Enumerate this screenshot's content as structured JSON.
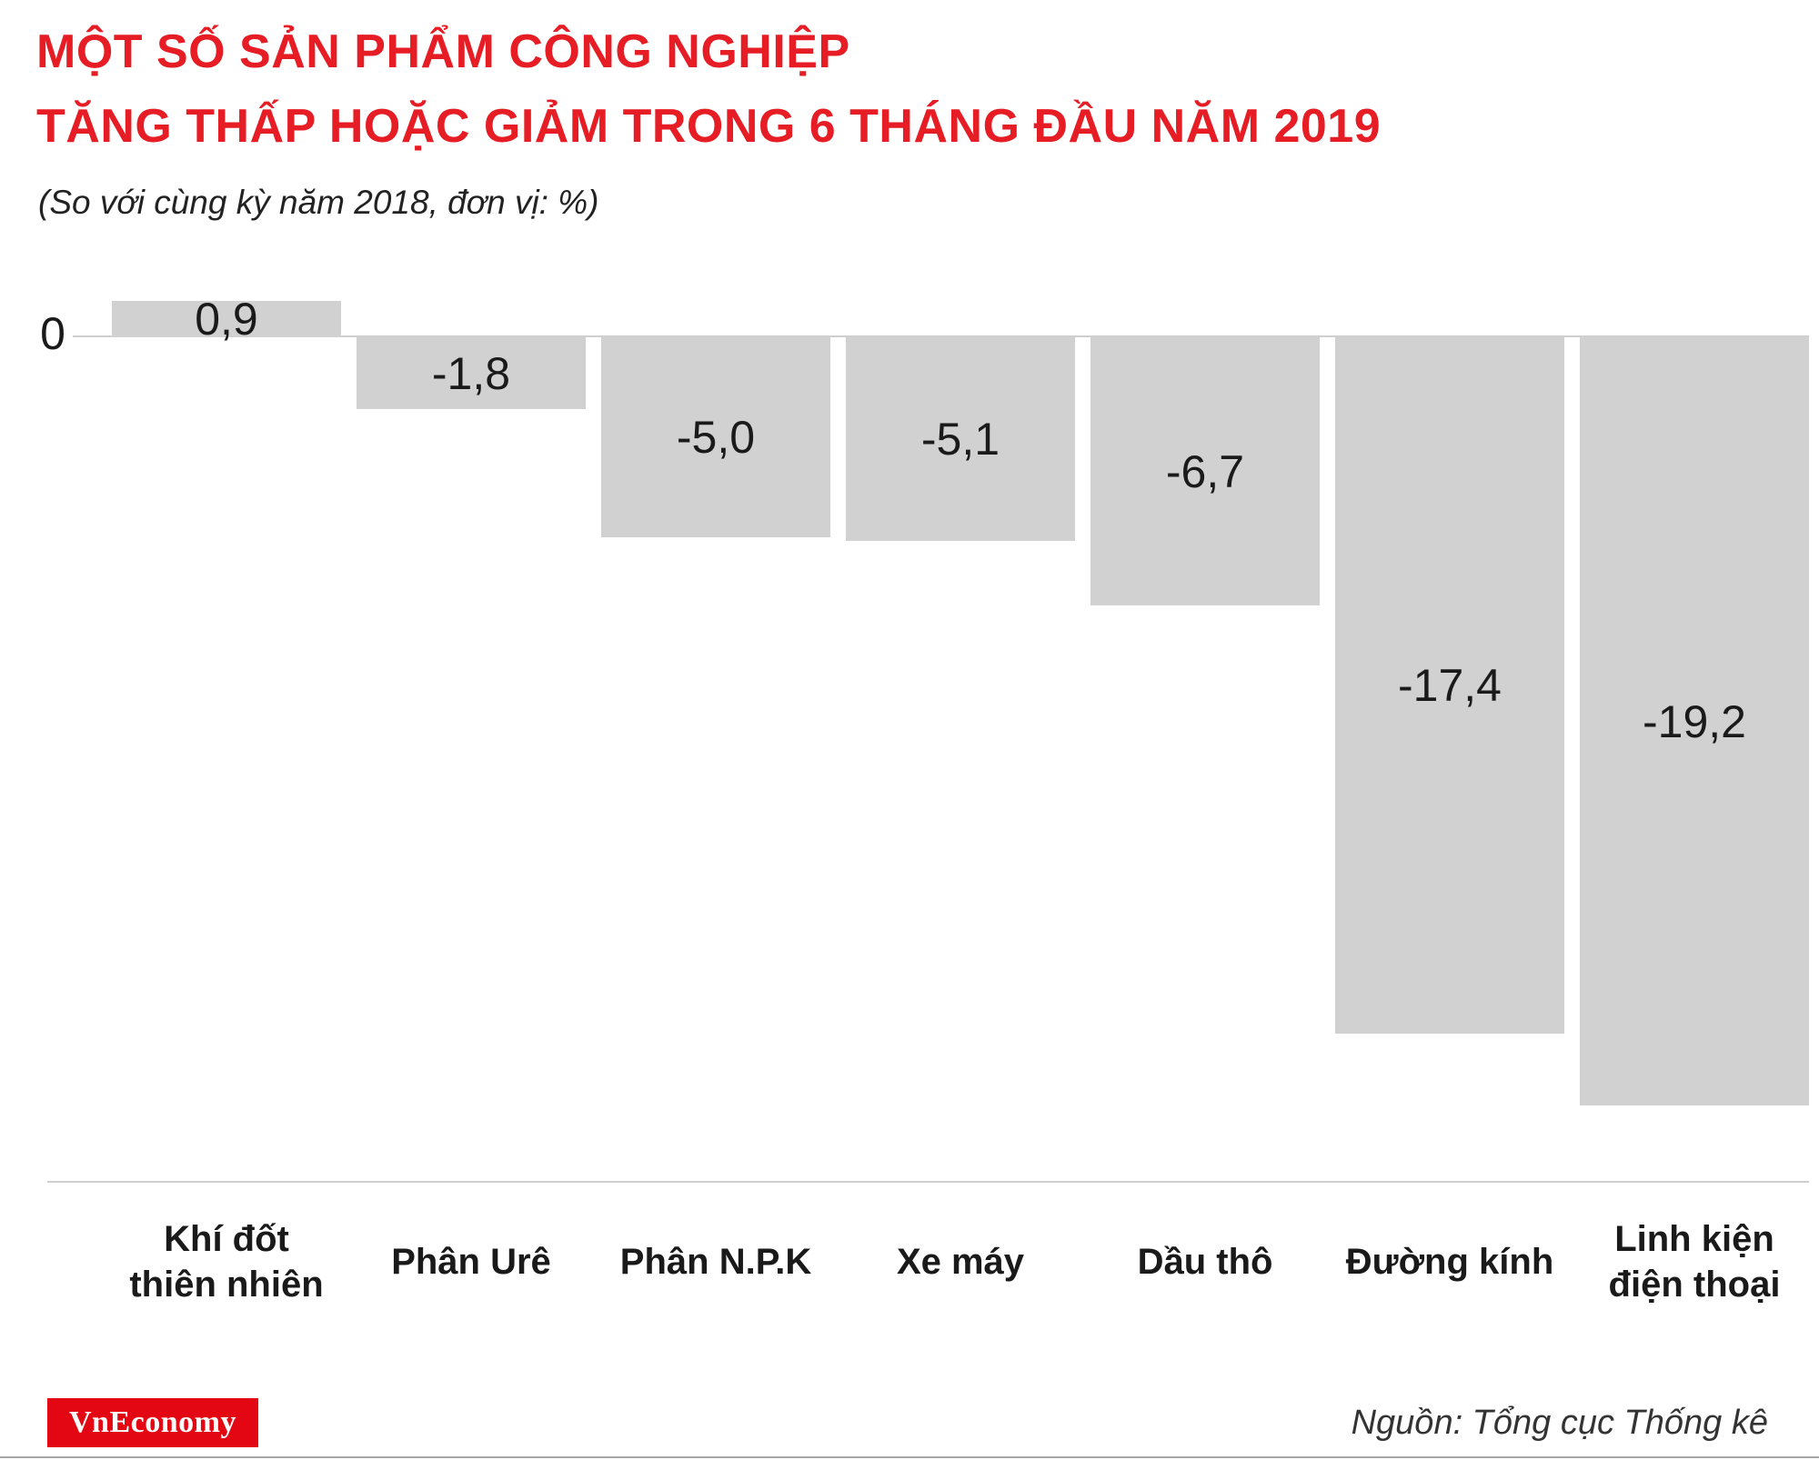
{
  "header": {
    "title_line1": "MỘT SỐ SẢN PHẨM CÔNG NGHIỆP",
    "title_line2": "TĂNG THẤP HOẶC GIẢM TRONG 6 THÁNG ĐẦU NĂM 2019",
    "subtitle": "(So với cùng kỳ năm 2018, đơn vị: %)"
  },
  "chart_data": {
    "type": "bar",
    "title": "Một số sản phẩm công nghiệp tăng thấp hoặc giảm trong 6 tháng đầu năm 2019",
    "subtitle": "(So với cùng kỳ năm 2018, đơn vị: %)",
    "categories": [
      "Khí đốt thiên nhiên",
      "Phân Urê",
      "Phân N.P.K",
      "Xe máy",
      "Dầu thô",
      "Đường kính",
      "Linh kiện điện thoại"
    ],
    "category_labels_multiline": [
      [
        "Khí đốt",
        "thiên nhiên"
      ],
      [
        "Phân Urê"
      ],
      [
        "Phân N.P.K"
      ],
      [
        "Xe máy"
      ],
      [
        "Dầu thô"
      ],
      [
        "Đường kính"
      ],
      [
        "Linh kiện",
        "điện thoại"
      ]
    ],
    "values": [
      0.9,
      -1.8,
      -5.0,
      -5.1,
      -6.7,
      -17.4,
      -19.2
    ],
    "value_labels": [
      "0,9",
      "-1,8",
      "-5,0",
      "-5,1",
      "-6,7",
      "-17,4",
      "-19,2"
    ],
    "zero_label": "0",
    "xlabel": "",
    "ylabel": "",
    "ylim": [
      -19.2,
      0.9
    ],
    "bar_color": "#d2d1d1",
    "grid": false,
    "legend": false,
    "orientation": "vertical"
  },
  "footer": {
    "logo_text": "VnEconomy",
    "source": "Nguồn: Tổng cục Thống kê"
  },
  "colors": {
    "title": "#e61d25",
    "logo_bg": "#e30613",
    "bar": "#d2d1d1",
    "axis_line": "#cfcfcf",
    "text": "#1a1a1a"
  }
}
